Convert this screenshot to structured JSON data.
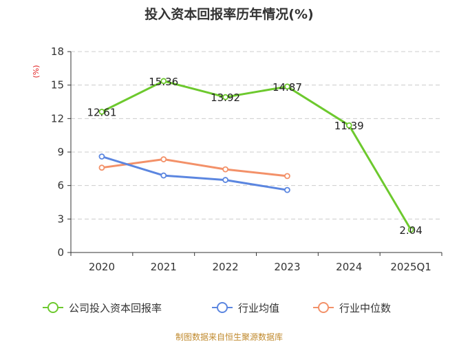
{
  "chart_data": {
    "type": "line",
    "title": "投入资本回报率历年情况(%)",
    "ylabel": "(%)",
    "categories": [
      "2020",
      "2021",
      "2022",
      "2023",
      "2024",
      "2025Q1"
    ],
    "ylim": [
      0,
      18
    ],
    "yticks": [
      0,
      3,
      6,
      9,
      12,
      15,
      18
    ],
    "grid": true,
    "legend_position": "bottom",
    "series": [
      {
        "name": "公司投入资本回报率",
        "color": "#6dc92e",
        "values": [
          12.61,
          15.36,
          13.92,
          14.87,
          11.39,
          2.04
        ],
        "labels_shown": true
      },
      {
        "name": "行业均值",
        "color": "#5b86e0",
        "values": [
          8.6,
          6.9,
          6.5,
          5.6,
          null,
          null
        ],
        "labels_shown": false
      },
      {
        "name": "行业中位数",
        "color": "#f39169",
        "values": [
          7.6,
          8.35,
          7.45,
          6.85,
          null,
          null
        ],
        "labels_shown": false
      }
    ]
  },
  "source": {
    "text": "制图数据来自恒生聚源数据库",
    "color": "#c08a2e"
  },
  "unit_color": "#e02020"
}
